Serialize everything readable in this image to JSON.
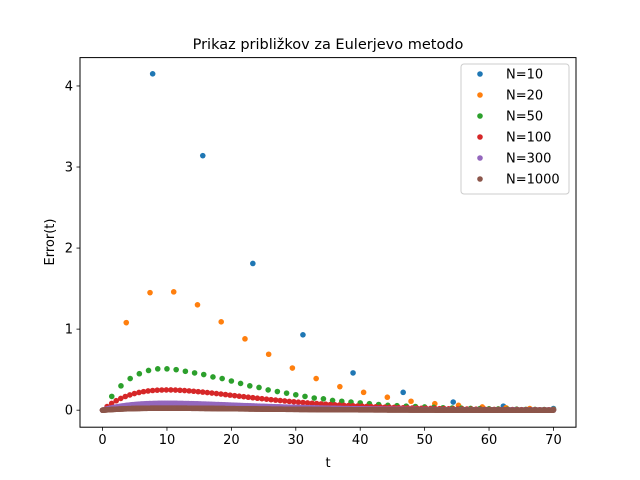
{
  "chart_data": {
    "type": "scatter",
    "title": "Prikaz približkov za Eulerjevo metodo",
    "xlabel": "t",
    "ylabel": "Error(t)",
    "xlim": [
      -3.5,
      73.5
    ],
    "ylim": [
      -0.21,
      4.35
    ],
    "xticks": [
      0,
      10,
      20,
      30,
      40,
      50,
      60,
      70
    ],
    "yticks": [
      0,
      1,
      2,
      3,
      4
    ],
    "grid": false,
    "legend": "top-right",
    "series": [
      {
        "name": "N=10",
        "color": "#1f77b4",
        "x": [
          0,
          7.78,
          15.56,
          23.33,
          31.11,
          38.89,
          46.67,
          54.44,
          62.22,
          70
        ],
        "y": [
          0,
          4.15,
          3.14,
          1.81,
          0.93,
          0.46,
          0.22,
          0.1,
          0.05,
          0.02
        ]
      },
      {
        "name": "N=20",
        "color": "#ff7f0e",
        "x": [
          0,
          3.68,
          7.37,
          11.05,
          14.74,
          18.42,
          22.11,
          25.79,
          29.47,
          33.16,
          36.84,
          40.53,
          44.21,
          47.89,
          51.58,
          55.26,
          58.95,
          62.63,
          66.32,
          70
        ],
        "y": [
          0,
          1.08,
          1.45,
          1.46,
          1.3,
          1.09,
          0.88,
          0.69,
          0.52,
          0.39,
          0.29,
          0.22,
          0.16,
          0.11,
          0.08,
          0.06,
          0.04,
          0.03,
          0.02,
          0.01
        ]
      },
      {
        "name": "N=50",
        "color": "#2ca02c",
        "x": [
          0,
          1.43,
          2.86,
          4.29,
          5.71,
          7.14,
          8.57,
          10,
          11.43,
          12.86,
          14.29,
          15.71,
          17.14,
          18.57,
          20,
          21.43,
          22.86,
          24.29,
          25.71,
          27.14,
          28.57,
          30,
          31.43,
          32.86,
          34.29,
          35.71,
          37.14,
          38.57,
          40,
          41.43,
          42.86,
          44.29,
          45.71,
          47.14,
          48.57,
          50,
          51.43,
          52.86,
          54.29,
          55.71,
          57.14,
          58.57,
          60,
          61.43,
          62.86,
          64.29,
          65.71,
          67.14,
          68.57,
          70
        ],
        "y": [
          0,
          0.17,
          0.3,
          0.39,
          0.45,
          0.49,
          0.51,
          0.51,
          0.5,
          0.48,
          0.46,
          0.44,
          0.41,
          0.39,
          0.36,
          0.33,
          0.3,
          0.28,
          0.25,
          0.23,
          0.21,
          0.19,
          0.17,
          0.15,
          0.14,
          0.12,
          0.11,
          0.1,
          0.09,
          0.08,
          0.07,
          0.06,
          0.055,
          0.05,
          0.045,
          0.04,
          0.035,
          0.03,
          0.027,
          0.024,
          0.021,
          0.019,
          0.017,
          0.015,
          0.013,
          0.012,
          0.01,
          0.009,
          0.008,
          0.007
        ]
      },
      {
        "name": "N=100",
        "color": "#d62728",
        "gen": {
          "n": 100,
          "peak": 0.25
        }
      },
      {
        "name": "N=300",
        "color": "#9467bd",
        "gen": {
          "n": 300,
          "peak": 0.085
        }
      },
      {
        "name": "N=1000",
        "color": "#8c564b",
        "gen": {
          "n": 1000,
          "peak": 0.025
        }
      }
    ]
  }
}
